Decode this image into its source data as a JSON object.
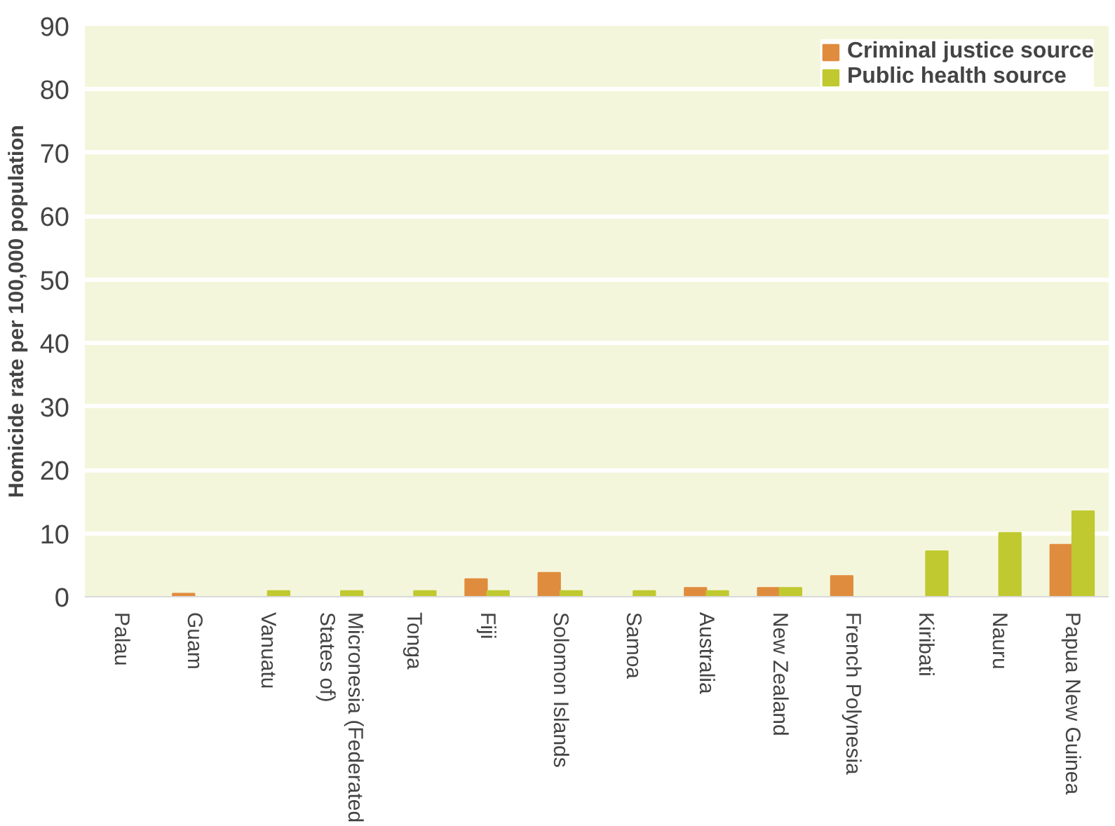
{
  "chart_data": {
    "type": "bar",
    "ylabel": "Homicide rate per 100,000 population",
    "categories": [
      "Palau",
      "Guam",
      "Vanuatu",
      "Micronesia (Federated States of)",
      "Tonga",
      "Fiji",
      "Solomon Islands",
      "Samoa",
      "Australia",
      "New Zealand",
      "French Polynesia",
      "Kiribati",
      "Nauru",
      "Papua New Guinea"
    ],
    "series": [
      {
        "name": "Criminal justice source",
        "color": "#e08c3e",
        "values": [
          null,
          0.5,
          null,
          null,
          null,
          2.8,
          3.8,
          null,
          1.4,
          1.4,
          3.3,
          null,
          null,
          8.2
        ]
      },
      {
        "name": "Public health source",
        "color": "#c0c92f",
        "values": [
          null,
          null,
          0.9,
          0.9,
          0.9,
          0.9,
          0.9,
          0.9,
          0.9,
          1.4,
          null,
          7.2,
          10.1,
          13.5
        ]
      }
    ],
    "ylim": [
      0,
      90
    ],
    "yticks": [
      0,
      10,
      20,
      30,
      40,
      50,
      60,
      70,
      80,
      90
    ],
    "grid": "y",
    "legend": "top right"
  }
}
